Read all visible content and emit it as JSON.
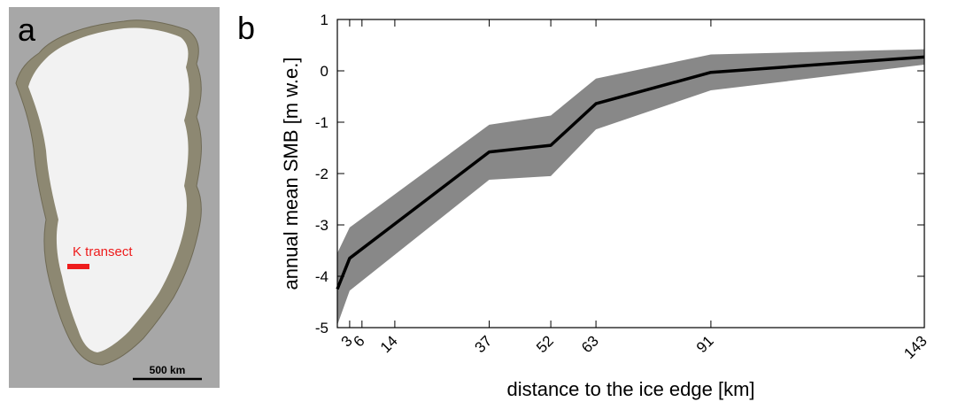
{
  "panel_a": {
    "letter": "a",
    "transect_label": "K transect",
    "transect_color": "#ee1c1c",
    "scale_bar_label": "500 km",
    "map_background": "#a7a7a7",
    "ice_color": "#f2f2f2",
    "land_color": "#8c8770"
  },
  "panel_b": {
    "letter": "b"
  },
  "chart_data": {
    "type": "line",
    "title": "",
    "xlabel": "distance to the ice edge [km]",
    "ylabel": "annual mean SMB [m w.e.]",
    "xlim": [
      0,
      143
    ],
    "ylim": [
      -5,
      1
    ],
    "xticks": [
      3,
      6,
      14,
      37,
      52,
      63,
      91,
      143
    ],
    "xtick_labels": [
      "3",
      "6",
      "14",
      "37",
      "52",
      "63",
      "91",
      "143"
    ],
    "yticks": [
      -5,
      -4,
      -3,
      -2,
      -1,
      0,
      1
    ],
    "ytick_labels": [
      "-5",
      "-4",
      "-3",
      "-2",
      "-1",
      "0",
      "1"
    ],
    "grid": false,
    "series": [
      {
        "x": [
          0,
          3,
          37,
          52,
          63,
          91,
          143
        ],
        "values": [
          -4.25,
          -3.65,
          -1.58,
          -1.45,
          -0.64,
          -0.03,
          0.27
        ],
        "color": "#000000"
      }
    ],
    "band": {
      "x": [
        0,
        3,
        37,
        52,
        63,
        91,
        143
      ],
      "upper": [
        -3.55,
        -3.05,
        -1.05,
        -0.87,
        -0.15,
        0.32,
        0.42
      ],
      "lower": [
        -4.95,
        -4.28,
        -2.12,
        -2.05,
        -1.14,
        -0.38,
        0.12
      ],
      "color": "#888888"
    }
  }
}
